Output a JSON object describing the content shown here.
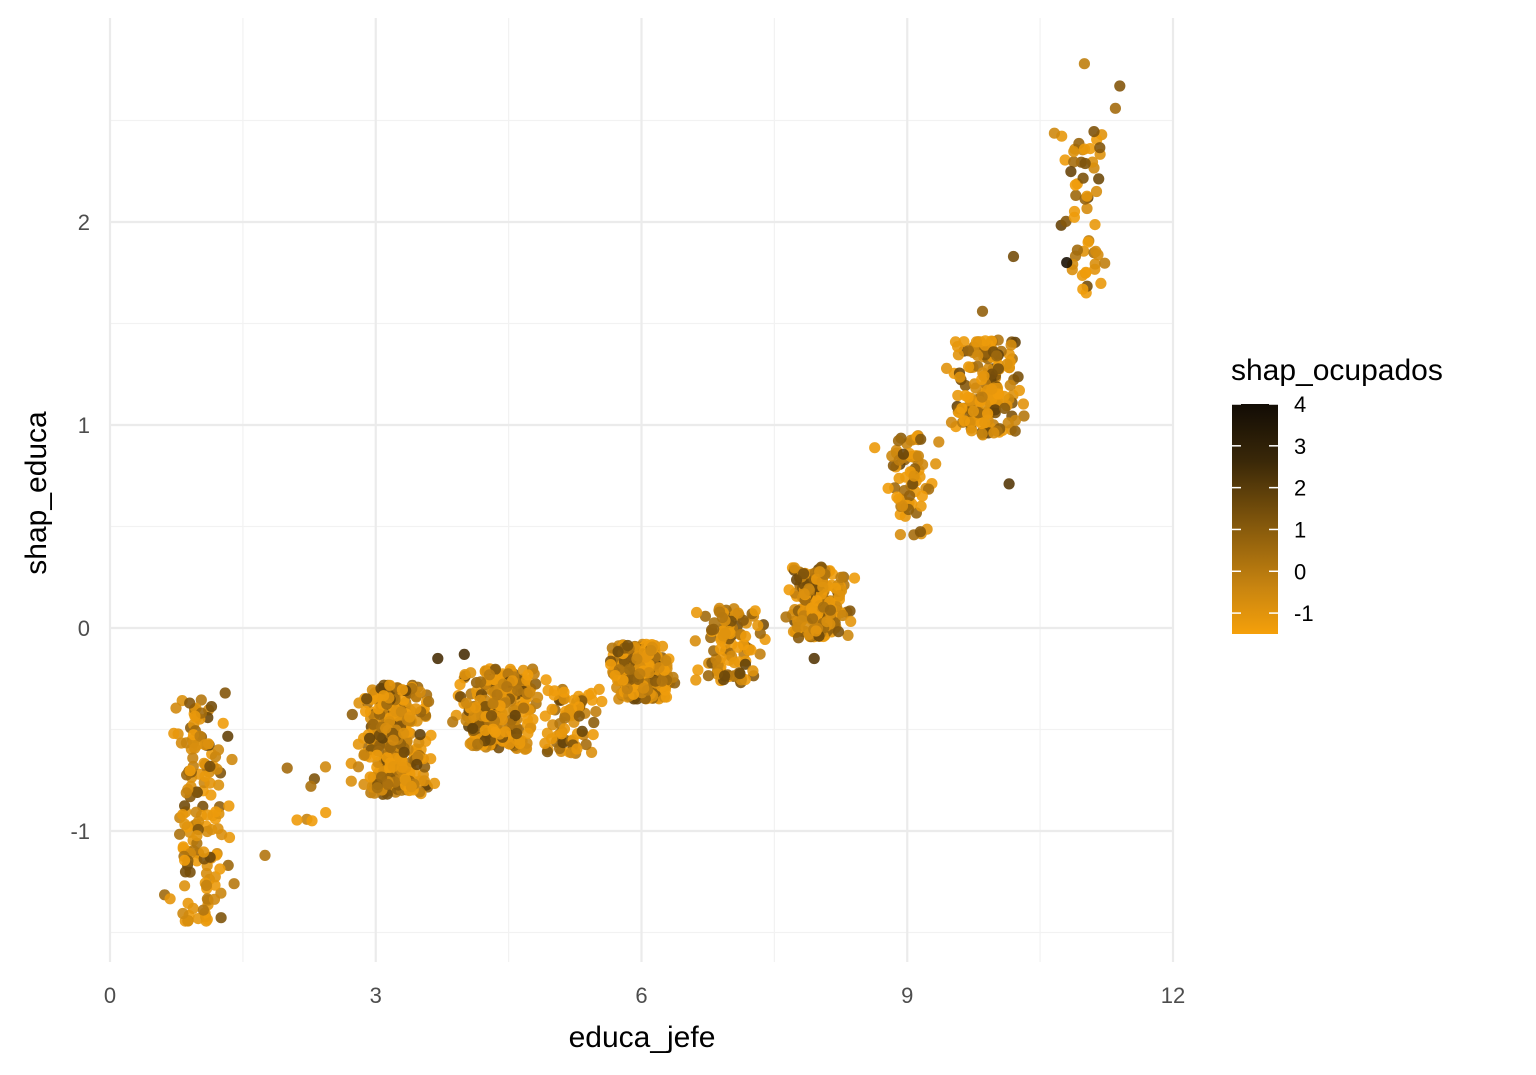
{
  "chart_data": {
    "type": "scatter",
    "xlabel": "educa_jefe",
    "ylabel": "shap_educa",
    "xlim": [
      0,
      12
    ],
    "ylim": [
      -1.65,
      2.95
    ],
    "x_ticks": [
      0,
      3,
      6,
      9,
      12
    ],
    "x_tick_labels": [
      "0",
      "3",
      "6",
      "9",
      "12"
    ],
    "y_ticks": [
      -1,
      0,
      1,
      2
    ],
    "y_tick_labels": [
      "-1",
      "0",
      "1",
      "2"
    ],
    "grid": true,
    "color_variable": "shap_ocupados",
    "color_scale": {
      "min": -1.5,
      "max": 4.0,
      "low_color": "#f5a00a",
      "mid_color": "#c98510",
      "high_color": "#120c05",
      "ticks": [
        4,
        3,
        2,
        1,
        0,
        -1
      ],
      "tick_labels": [
        "4",
        "3",
        "2",
        "1",
        "0",
        "-1"
      ]
    },
    "legend_position": "right",
    "clusters": [
      {
        "x_center": 1.0,
        "x_spread": 0.5,
        "y_min": -1.45,
        "y_max": -0.35,
        "count": 150
      },
      {
        "x_center": 2.3,
        "x_spread": 0.35,
        "y_min": -0.95,
        "y_max": -0.65,
        "count": 7
      },
      {
        "x_center": 3.2,
        "x_spread": 0.55,
        "y_min": -0.82,
        "y_max": -0.28,
        "count": 340
      },
      {
        "x_center": 4.4,
        "x_spread": 0.65,
        "y_min": -0.6,
        "y_max": -0.2,
        "count": 280
      },
      {
        "x_center": 5.2,
        "x_spread": 0.4,
        "y_min": -0.62,
        "y_max": -0.3,
        "count": 70
      },
      {
        "x_center": 6.0,
        "x_spread": 0.45,
        "y_min": -0.35,
        "y_max": -0.08,
        "count": 300
      },
      {
        "x_center": 7.0,
        "x_spread": 0.5,
        "y_min": -0.28,
        "y_max": 0.1,
        "count": 100
      },
      {
        "x_center": 8.0,
        "x_spread": 0.45,
        "y_min": -0.05,
        "y_max": 0.3,
        "count": 230
      },
      {
        "x_center": 9.0,
        "x_spread": 0.4,
        "y_min": 0.45,
        "y_max": 0.95,
        "count": 70
      },
      {
        "x_center": 9.9,
        "x_spread": 0.55,
        "y_min": 0.95,
        "y_max": 1.42,
        "count": 170
      },
      {
        "x_center": 11.0,
        "x_spread": 0.45,
        "y_min": 1.65,
        "y_max": 2.45,
        "count": 55
      }
    ],
    "outliers": [
      {
        "x": 11.0,
        "y": 2.78,
        "color_value": 0.2
      },
      {
        "x": 11.4,
        "y": 2.67,
        "color_value": 1.5
      },
      {
        "x": 11.35,
        "y": 2.56,
        "color_value": 0.8
      },
      {
        "x": 10.8,
        "y": 1.8,
        "color_value": 3.8
      },
      {
        "x": 10.15,
        "y": 0.71,
        "color_value": 2.5
      },
      {
        "x": 10.2,
        "y": 1.83,
        "color_value": 1.8
      },
      {
        "x": 9.85,
        "y": 1.56,
        "color_value": 1.2
      },
      {
        "x": 7.95,
        "y": -0.15,
        "color_value": 2.5
      },
      {
        "x": 4.0,
        "y": -0.13,
        "color_value": 2.8
      },
      {
        "x": 3.7,
        "y": -0.15,
        "color_value": 2.8
      },
      {
        "x": 1.3,
        "y": -0.32,
        "color_value": 1.5
      },
      {
        "x": 0.9,
        "y": -0.37,
        "color_value": 1.5
      },
      {
        "x": 1.75,
        "y": -1.12,
        "color_value": 0.5
      },
      {
        "x": 2.0,
        "y": -0.69,
        "color_value": 0.8
      }
    ]
  }
}
